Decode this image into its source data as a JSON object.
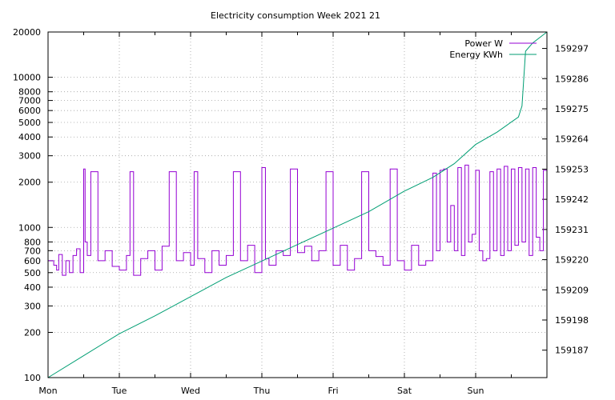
{
  "chart_data": {
    "type": "line",
    "title": "Electricity consumption Week 2021 21",
    "x_tick_labels": [
      "Mon",
      "Tue",
      "Wed",
      "Thu",
      "Fri",
      "Sat",
      "Sun"
    ],
    "x_range_days": [
      0,
      7
    ],
    "y_left": {
      "scale": "log",
      "range": [
        100,
        20000
      ],
      "ticks": [
        100,
        200,
        300,
        400,
        500,
        600,
        700,
        800,
        1000,
        2000,
        3000,
        4000,
        5000,
        6000,
        7000,
        8000,
        10000,
        20000
      ]
    },
    "y_right": {
      "range": [
        159177,
        159303
      ],
      "ticks": [
        159187,
        159198,
        159209,
        159220,
        159231,
        159242,
        159253,
        159264,
        159275,
        159286,
        159297
      ]
    },
    "grid": true,
    "legend_position": "top-right",
    "series": [
      {
        "name": "Power W",
        "axis": "left",
        "color": "#9400d3",
        "x": [
          0.0,
          0.08,
          0.12,
          0.15,
          0.2,
          0.25,
          0.3,
          0.35,
          0.4,
          0.45,
          0.5,
          0.52,
          0.55,
          0.6,
          0.7,
          0.8,
          0.9,
          1.0,
          1.1,
          1.15,
          1.2,
          1.3,
          1.4,
          1.5,
          1.6,
          1.7,
          1.8,
          1.9,
          2.0,
          2.05,
          2.1,
          2.2,
          2.3,
          2.4,
          2.5,
          2.6,
          2.7,
          2.8,
          2.9,
          3.0,
          3.05,
          3.1,
          3.2,
          3.3,
          3.4,
          3.5,
          3.6,
          3.7,
          3.8,
          3.9,
          4.0,
          4.1,
          4.2,
          4.3,
          4.4,
          4.5,
          4.6,
          4.7,
          4.8,
          4.9,
          5.0,
          5.1,
          5.2,
          5.3,
          5.4,
          5.45,
          5.5,
          5.55,
          5.6,
          5.65,
          5.7,
          5.75,
          5.8,
          5.85,
          5.9,
          5.95,
          6.0,
          6.05,
          6.1,
          6.15,
          6.2,
          6.25,
          6.3,
          6.35,
          6.4,
          6.45,
          6.5,
          6.55,
          6.6,
          6.65,
          6.7,
          6.75,
          6.8,
          6.85,
          6.9,
          6.95,
          7.0
        ],
        "y": [
          600,
          560,
          520,
          660,
          480,
          600,
          500,
          650,
          720,
          500,
          2450,
          800,
          650,
          2350,
          600,
          700,
          550,
          520,
          650,
          2350,
          480,
          620,
          700,
          520,
          750,
          2350,
          600,
          680,
          560,
          2350,
          620,
          500,
          700,
          560,
          650,
          2350,
          600,
          760,
          500,
          2500,
          620,
          560,
          700,
          650,
          2450,
          680,
          750,
          600,
          700,
          2350,
          560,
          760,
          520,
          620,
          2350,
          700,
          640,
          560,
          2450,
          600,
          520,
          760,
          560,
          600,
          2300,
          700,
          2400,
          2450,
          800,
          1400,
          700,
          2500,
          650,
          2600,
          800,
          900,
          2400,
          700,
          600,
          620,
          2350,
          700,
          2450,
          650,
          2550,
          700,
          2450,
          760,
          2500,
          800,
          2450,
          650,
          2500,
          860,
          700,
          2400,
          800
        ]
      },
      {
        "name": "Energy KWh",
        "axis": "right",
        "color": "#009e73",
        "x": [
          0.0,
          0.5,
          1.0,
          1.5,
          2.0,
          2.5,
          3.0,
          3.5,
          4.0,
          4.5,
          5.0,
          5.4,
          5.7,
          6.0,
          6.3,
          6.6,
          6.65,
          6.7,
          6.8,
          7.0
        ],
        "y": [
          159177,
          159185,
          159193,
          159199.5,
          159206.5,
          159213.5,
          159219.5,
          159225.5,
          159231.5,
          159237.5,
          159245,
          159250,
          159255,
          159262,
          159266.5,
          159272,
          159276,
          159296,
          159299,
          159303
        ]
      }
    ]
  }
}
